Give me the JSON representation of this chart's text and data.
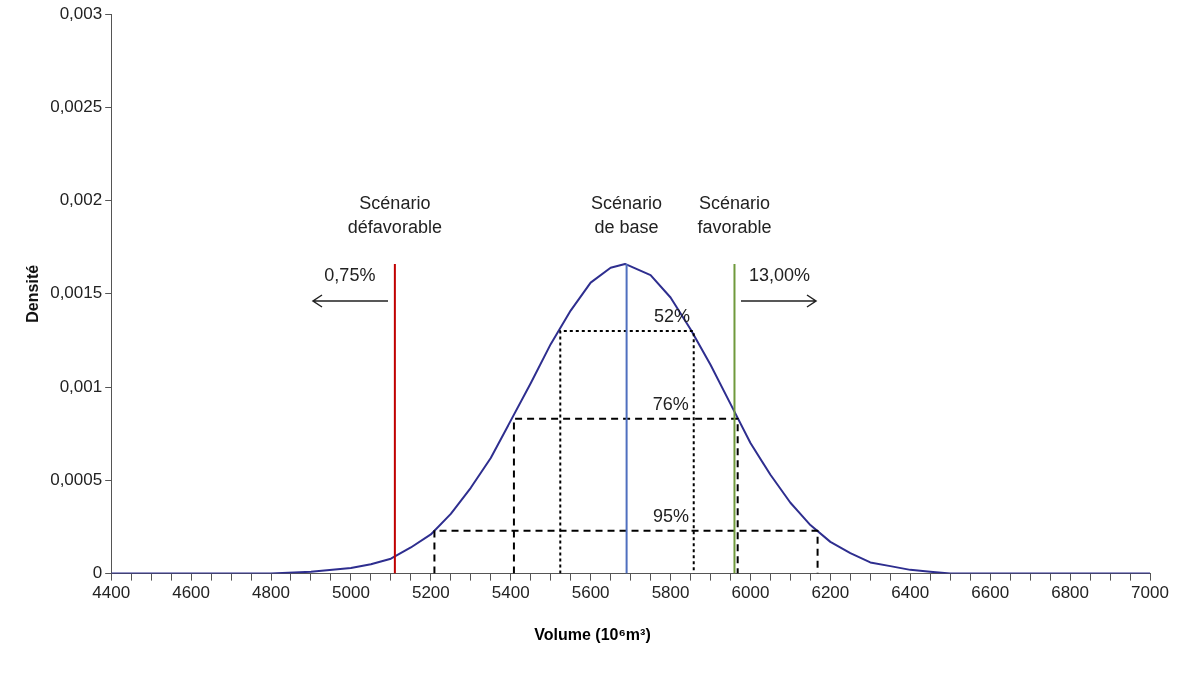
{
  "chart_data": {
    "type": "line",
    "xlabel": "Volume (10⁶m³)",
    "ylabel": "Densité",
    "xlim": [
      4400,
      7000
    ],
    "xticks": [
      4400,
      {
        "value": 4450,
        "label": null
      },
      {
        "value": 4500,
        "label": null
      },
      {
        "value": 4550,
        "label": null
      },
      4600,
      {
        "value": 4650,
        "label": null
      },
      {
        "value": 4700,
        "label": null
      },
      {
        "value": 4750,
        "label": null
      },
      4800,
      {
        "value": 4850,
        "label": null
      },
      {
        "value": 4900,
        "label": null
      },
      {
        "value": 4950,
        "label": null
      },
      5000,
      {
        "value": 5050,
        "label": null
      },
      {
        "value": 5100,
        "label": null
      },
      {
        "value": 5150,
        "label": null
      },
      5200,
      {
        "value": 5250,
        "label": null
      },
      {
        "value": 5300,
        "label": null
      },
      {
        "value": 5350,
        "label": null
      },
      5400,
      {
        "value": 5450,
        "label": null
      },
      {
        "value": 5500,
        "label": null
      },
      {
        "value": 5550,
        "label": null
      },
      5600,
      {
        "value": 5650,
        "label": null
      },
      {
        "value": 5700,
        "label": null
      },
      {
        "value": 5750,
        "label": null
      },
      5800,
      {
        "value": 5850,
        "label": null
      },
      {
        "value": 5900,
        "label": null
      },
      {
        "value": 5950,
        "label": null
      },
      6000,
      {
        "value": 6050,
        "label": null
      },
      {
        "value": 6100,
        "label": null
      },
      {
        "value": 6150,
        "label": null
      },
      6200,
      {
        "value": 6250,
        "label": null
      },
      {
        "value": 6300,
        "label": null
      },
      {
        "value": 6350,
        "label": null
      },
      6400,
      {
        "value": 6450,
        "label": null
      },
      {
        "value": 6500,
        "label": null
      },
      {
        "value": 6550,
        "label": null
      },
      6600,
      {
        "value": 6650,
        "label": null
      },
      {
        "value": 6700,
        "label": null
      },
      {
        "value": 6750,
        "label": null
      },
      6800,
      {
        "value": 6850,
        "label": null
      },
      {
        "value": 6900,
        "label": null
      },
      {
        "value": 6950,
        "label": null
      },
      7000
    ],
    "ylim": [
      0,
      0.003
    ],
    "yticks": [
      0,
      {
        "value": 0.0005,
        "label": "0,0005"
      },
      {
        "value": 0.001,
        "label": "0,001"
      },
      {
        "value": 0.0015,
        "label": "0,0015"
      },
      {
        "value": 0.002,
        "label": "0,002"
      },
      {
        "value": 0.0025,
        "label": "0,0025"
      },
      {
        "value": 0.003,
        "label": "0,003"
      }
    ],
    "grid": false,
    "legend": false,
    "marker": "none",
    "series": [
      {
        "type": "line",
        "name": "Scénario défavorable",
        "color": "#c00000",
        "line_style": "solid",
        "x": [
          5110,
          5110
        ],
        "values": [
          0,
          0.00166
        ]
      },
      {
        "type": "line",
        "name": "Scénario de base",
        "color": "#4f6fbf",
        "line_style": "solid",
        "x": [
          5690,
          5690
        ],
        "values": [
          0,
          0.00166
        ]
      },
      {
        "type": "line",
        "name": "Scénario favorable",
        "color": "#6f9a3c",
        "line_style": "solid",
        "x": [
          5960,
          5960
        ],
        "values": [
          0,
          0.00166
        ]
      },
      {
        "type": "line",
        "name": "52%",
        "color": "#000000",
        "line_style": "dotted",
        "x": [
          5524,
          5524,
          5858,
          5858
        ],
        "values": [
          0,
          0.0013,
          0.0013,
          0
        ]
      },
      {
        "type": "line",
        "name": "76%",
        "color": "#000000",
        "line_style": "dashed",
        "x": [
          5408,
          5408,
          5968,
          5968
        ],
        "values": [
          0,
          0.00083,
          0.00083,
          0
        ]
      },
      {
        "type": "line",
        "name": "95%",
        "color": "#000000",
        "line_style": "dashed",
        "x": [
          5209,
          5209,
          6168,
          6168
        ],
        "values": [
          0,
          0.00023,
          0.00023,
          0
        ]
      },
      {
        "type": "line",
        "color": "#2e2e8f",
        "line_style": "solid",
        "x": [
          4400,
          4600,
          4800,
          4900,
          5000,
          5050,
          5100,
          5150,
          5200,
          5250,
          5300,
          5350,
          5400,
          5450,
          5500,
          5550,
          5600,
          5650,
          5686,
          5750,
          5800,
          5850,
          5900,
          5950,
          6000,
          6050,
          6100,
          6150,
          6200,
          6250,
          6300,
          6350,
          6400,
          6450,
          6500,
          6700,
          7000
        ],
        "values": [
          0,
          0,
          0,
          1e-05,
          3e-05,
          5e-05,
          8e-05,
          0.00014,
          0.00021,
          0.00032,
          0.00046,
          0.00062,
          0.00082,
          0.00102,
          0.00123,
          0.00141,
          0.00156,
          0.00164,
          0.00166,
          0.0016,
          0.00148,
          0.00131,
          0.00112,
          0.00091,
          0.0007,
          0.00053,
          0.00038,
          0.00026,
          0.00017,
          0.00011,
          6e-05,
          4e-05,
          2e-05,
          1e-05,
          0,
          0,
          0
        ]
      }
    ],
    "annotations": [
      "0,75%",
      "13,00%"
    ]
  }
}
